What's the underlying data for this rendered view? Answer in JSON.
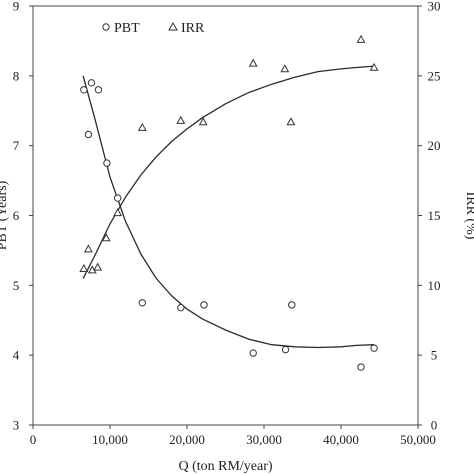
{
  "chart_data": {
    "type": "scatter",
    "xlabel": "Q (ton RM/year)",
    "ylabel_left": "PBT (Years)",
    "ylabel_right": "IRR (%)",
    "xlim": [
      0,
      50000
    ],
    "ylim_left": [
      3,
      9
    ],
    "ylim_right": [
      0,
      30
    ],
    "x_ticks": [
      0,
      10000,
      20000,
      30000,
      40000,
      50000
    ],
    "x_tick_labels": [
      "0",
      "10,000",
      "20,000",
      "30,000",
      "40,000",
      "50,000"
    ],
    "y_left_ticks": [
      3,
      4,
      5,
      6,
      7,
      8,
      9
    ],
    "y_left_tick_labels": [
      "3",
      "4",
      "5",
      "6",
      "7",
      "8",
      "9"
    ],
    "y_right_ticks": [
      0,
      5,
      10,
      15,
      20,
      25,
      30
    ],
    "y_right_tick_labels": [
      "0",
      "5",
      "10",
      "15",
      "20",
      "25",
      "30"
    ],
    "grid": false,
    "legend_position": "top",
    "series": [
      {
        "name": "PBT",
        "axis": "left",
        "marker": "circle",
        "points": [
          [
            6600,
            7.8
          ],
          [
            7200,
            7.16
          ],
          [
            7600,
            7.9
          ],
          [
            8500,
            7.8
          ],
          [
            9600,
            6.75
          ],
          [
            11000,
            6.25
          ],
          [
            14200,
            4.75
          ],
          [
            19200,
            4.68
          ],
          [
            22200,
            4.72
          ],
          [
            28600,
            4.03
          ],
          [
            32800,
            4.08
          ],
          [
            33600,
            4.72
          ],
          [
            42600,
            3.83
          ],
          [
            44300,
            4.1
          ]
        ],
        "trend": [
          [
            6500,
            8.0
          ],
          [
            8000,
            7.4
          ],
          [
            10000,
            6.55
          ],
          [
            12000,
            5.92
          ],
          [
            14000,
            5.45
          ],
          [
            16000,
            5.1
          ],
          [
            18000,
            4.85
          ],
          [
            20000,
            4.66
          ],
          [
            22000,
            4.52
          ],
          [
            25000,
            4.36
          ],
          [
            28000,
            4.23
          ],
          [
            31000,
            4.15
          ],
          [
            34000,
            4.12
          ],
          [
            37000,
            4.11
          ],
          [
            40000,
            4.12
          ],
          [
            42000,
            4.14
          ],
          [
            44300,
            4.15
          ]
        ]
      },
      {
        "name": "IRR",
        "axis": "right",
        "marker": "triangle",
        "points": [
          [
            6600,
            11.2
          ],
          [
            7200,
            12.6
          ],
          [
            7700,
            11.1
          ],
          [
            8400,
            11.3
          ],
          [
            9500,
            13.4
          ],
          [
            11000,
            15.2
          ],
          [
            14200,
            21.3
          ],
          [
            19200,
            21.8
          ],
          [
            22100,
            21.7
          ],
          [
            28600,
            25.9
          ],
          [
            32700,
            25.5
          ],
          [
            33500,
            21.7
          ],
          [
            42600,
            27.6
          ],
          [
            44300,
            25.6
          ]
        ],
        "trend": [
          [
            6500,
            10.5
          ],
          [
            8000,
            12.1
          ],
          [
            10000,
            14.4
          ],
          [
            12000,
            16.3
          ],
          [
            14000,
            17.9
          ],
          [
            16000,
            19.2
          ],
          [
            18000,
            20.3
          ],
          [
            20000,
            21.2
          ],
          [
            22000,
            22.0
          ],
          [
            25000,
            23.0
          ],
          [
            28000,
            23.8
          ],
          [
            31000,
            24.4
          ],
          [
            34000,
            24.9
          ],
          [
            37000,
            25.3
          ],
          [
            40000,
            25.5
          ],
          [
            42000,
            25.6
          ],
          [
            44300,
            25.7
          ]
        ]
      }
    ]
  }
}
